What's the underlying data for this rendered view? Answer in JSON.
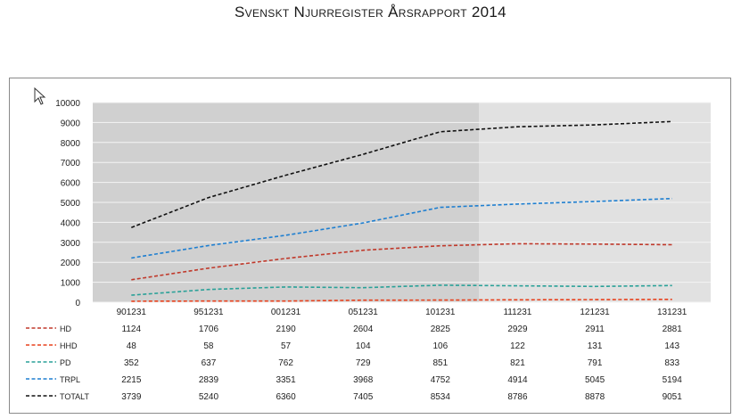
{
  "page": {
    "title": "Svenskt Njurregister Årsrapport 2014"
  },
  "chart_data": {
    "type": "line",
    "categories": [
      "901231",
      "951231",
      "001231",
      "051231",
      "101231",
      "111231",
      "121231",
      "131231"
    ],
    "series": [
      {
        "name": "HD",
        "color": "#c0392b",
        "values": [
          1124,
          1706,
          2190,
          2604,
          2825,
          2929,
          2911,
          2881
        ]
      },
      {
        "name": "HHD",
        "color": "#e8401c",
        "values": [
          48,
          58,
          57,
          104,
          106,
          122,
          131,
          143
        ]
      },
      {
        "name": "PD",
        "color": "#2aa198",
        "values": [
          352,
          637,
          762,
          729,
          851,
          821,
          791,
          833
        ]
      },
      {
        "name": "TRPL",
        "color": "#1f7fd0",
        "values": [
          2215,
          2839,
          3351,
          3968,
          4752,
          4914,
          5045,
          5194
        ]
      },
      {
        "name": "TOTALT",
        "color": "#111111",
        "values": [
          3739,
          5240,
          6360,
          7405,
          8534,
          8786,
          8878,
          9051
        ]
      }
    ],
    "y_ticks": [
      "0",
      "1000",
      "2000",
      "3000",
      "4000",
      "5000",
      "6000",
      "7000",
      "8000",
      "9000",
      "10000"
    ],
    "ylim": [
      0,
      10000
    ],
    "grid": true,
    "data_table": true,
    "legend": "data-table-left",
    "background": {
      "shaded_until_category": "101231",
      "shade_dark": "#d0d0d0",
      "shade_light": "#e1e1e1"
    }
  }
}
